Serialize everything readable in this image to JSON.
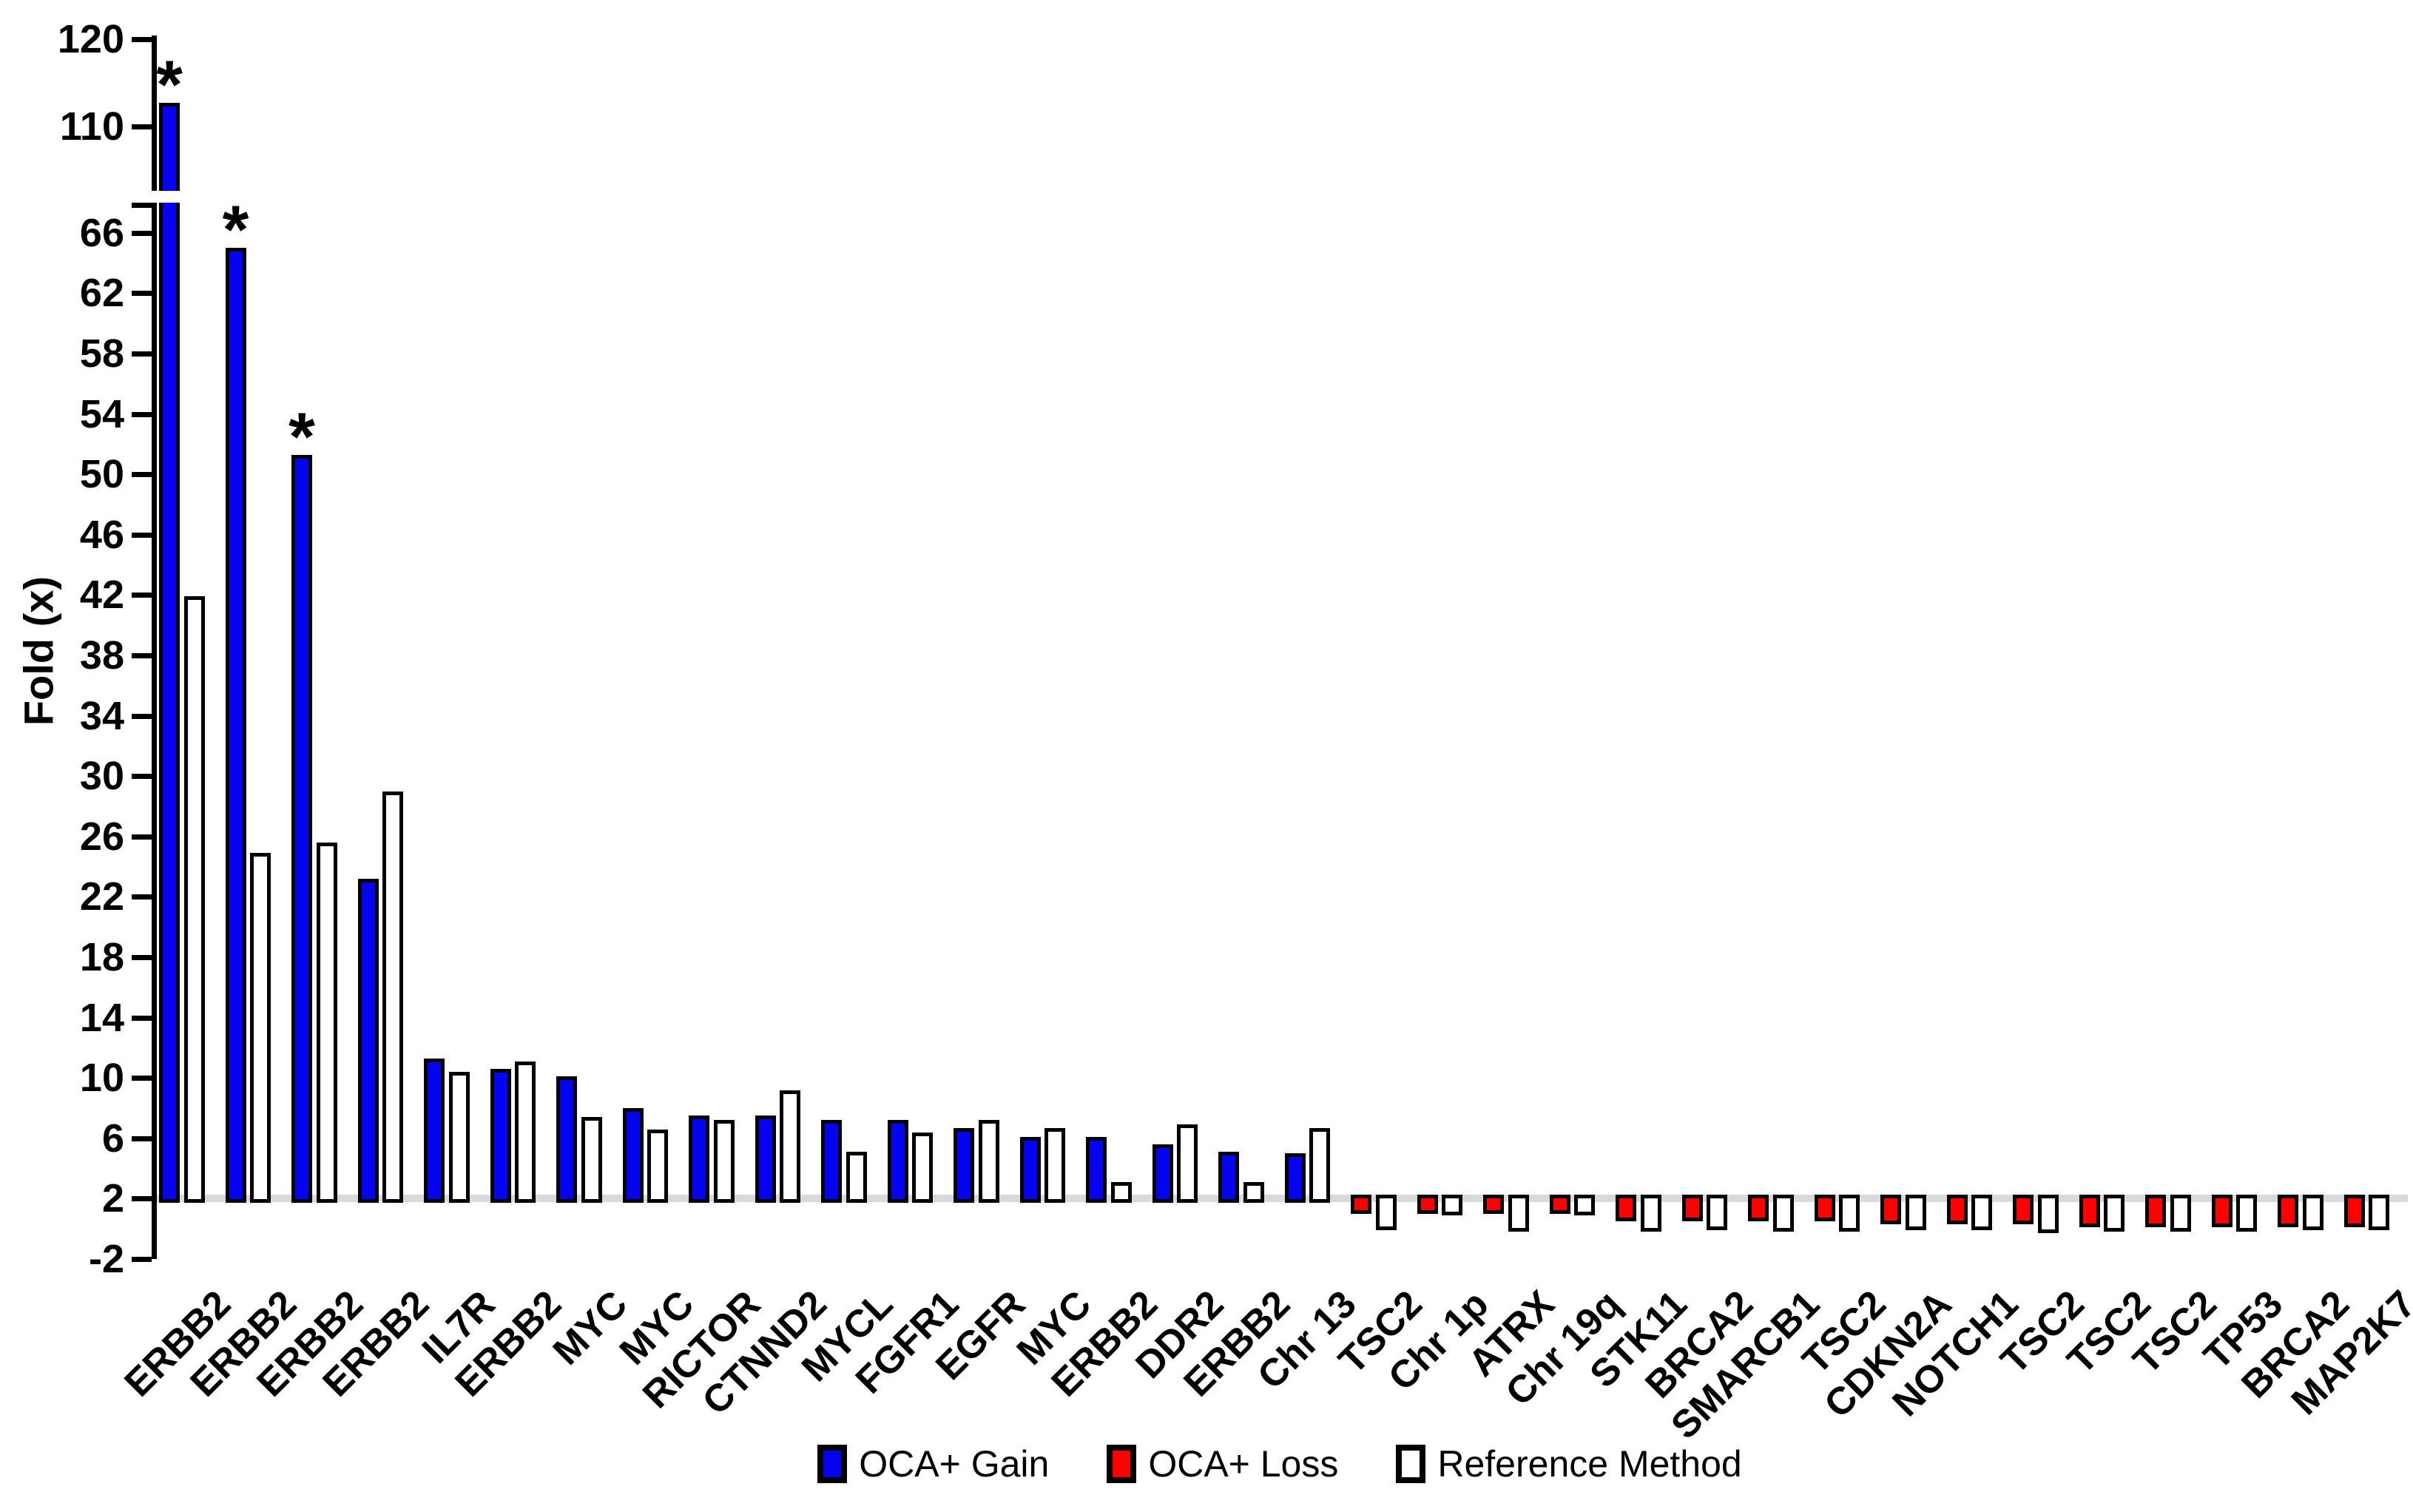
{
  "chart_data": {
    "type": "bar",
    "title": "",
    "ylabel": "Fold (x)",
    "xlabel": "",
    "significance_marker": "*",
    "axis": {
      "baseline_value": 2,
      "lower_ticks": [
        -2,
        2,
        6,
        10,
        14,
        18,
        22,
        26,
        30,
        34,
        38,
        42,
        46,
        50,
        54,
        58,
        62,
        66
      ],
      "upper_ticks": [
        110,
        120
      ],
      "lower_range": [
        -2,
        68
      ],
      "upper_range": [
        102.6,
        120.4
      ],
      "broken_axis": true,
      "grid": false
    },
    "colors": {
      "gain": "#0404f0",
      "loss": "#ff0000",
      "reference": "#ffffff",
      "bar_border": "#000000",
      "baseline_line": "#d9d9d9"
    },
    "legend": [
      {
        "label": "OCA+ Gain",
        "color": "#0404f0"
      },
      {
        "label": "OCA+ Loss",
        "color": "#ff0000"
      },
      {
        "label": "Reference Method",
        "color": "#ffffff"
      }
    ],
    "legend_position": "bottom",
    "rows": [
      {
        "label": "ERBB2",
        "type": "gain",
        "oca": 112.7,
        "reference": 41.9,
        "significant": true
      },
      {
        "label": "ERBB2",
        "type": "gain",
        "oca": 65.0,
        "reference": 24.9,
        "significant": true
      },
      {
        "label": "ERBB2",
        "type": "gain",
        "oca": 51.3,
        "reference": 25.6,
        "significant": true
      },
      {
        "label": "ERBB2",
        "type": "gain",
        "oca": 23.2,
        "reference": 29.0,
        "significant": false
      },
      {
        "label": "IL7R",
        "type": "gain",
        "oca": 11.3,
        "reference": 10.4,
        "significant": false
      },
      {
        "label": "ERBB2",
        "type": "gain",
        "oca": 10.6,
        "reference": 11.1,
        "significant": false
      },
      {
        "label": "MYC",
        "type": "gain",
        "oca": 10.1,
        "reference": 7.4,
        "significant": false
      },
      {
        "label": "MYC",
        "type": "gain",
        "oca": 8.0,
        "reference": 6.6,
        "significant": false
      },
      {
        "label": "RICTOR",
        "type": "gain",
        "oca": 7.5,
        "reference": 7.2,
        "significant": false
      },
      {
        "label": "CTNND2",
        "type": "gain",
        "oca": 7.5,
        "reference": 9.2,
        "significant": false
      },
      {
        "label": "MYCL",
        "type": "gain",
        "oca": 7.2,
        "reference": 5.1,
        "significant": false
      },
      {
        "label": "FGFR1",
        "type": "gain",
        "oca": 7.2,
        "reference": 6.4,
        "significant": false
      },
      {
        "label": "EGFR",
        "type": "gain",
        "oca": 6.7,
        "reference": 7.2,
        "significant": false
      },
      {
        "label": "MYC",
        "type": "gain",
        "oca": 6.1,
        "reference": 6.7,
        "significant": false
      },
      {
        "label": "ERBB2",
        "type": "gain",
        "oca": 6.1,
        "reference": 3.1,
        "significant": false
      },
      {
        "label": "DDR2",
        "type": "gain",
        "oca": 5.6,
        "reference": 6.9,
        "significant": false
      },
      {
        "label": "ERBB2",
        "type": "gain",
        "oca": 5.1,
        "reference": 3.1,
        "significant": false
      },
      {
        "label": "Chr 13",
        "type": "gain",
        "oca": 5.0,
        "reference": 6.7,
        "significant": false
      },
      {
        "label": "TSC2",
        "type": "loss",
        "oca": 1.0,
        "reference": -0.1,
        "significant": false
      },
      {
        "label": "Chr 1p",
        "type": "loss",
        "oca": 1.0,
        "reference": 0.9,
        "significant": false
      },
      {
        "label": "ATRX",
        "type": "loss",
        "oca": 1.0,
        "reference": -0.2,
        "significant": false
      },
      {
        "label": "Chr 19q",
        "type": "loss",
        "oca": 1.0,
        "reference": 0.9,
        "significant": false
      },
      {
        "label": "STK11",
        "type": "loss",
        "oca": 0.5,
        "reference": -0.2,
        "significant": false
      },
      {
        "label": "BRCA2",
        "type": "loss",
        "oca": 0.5,
        "reference": -0.1,
        "significant": false
      },
      {
        "label": "SMARCB1",
        "type": "loss",
        "oca": 0.5,
        "reference": -0.2,
        "significant": false
      },
      {
        "label": "TSC2",
        "type": "loss",
        "oca": 0.5,
        "reference": -0.2,
        "significant": false
      },
      {
        "label": "CDKN2A",
        "type": "loss",
        "oca": 0.3,
        "reference": -0.1,
        "significant": false
      },
      {
        "label": "NOTCH1",
        "type": "loss",
        "oca": 0.3,
        "reference": -0.1,
        "significant": false
      },
      {
        "label": "TSC2",
        "type": "loss",
        "oca": 0.3,
        "reference": -0.3,
        "significant": false
      },
      {
        "label": "TSC2",
        "type": "loss",
        "oca": 0.1,
        "reference": -0.2,
        "significant": false
      },
      {
        "label": "TSC2",
        "type": "loss",
        "oca": 0.1,
        "reference": -0.2,
        "significant": false
      },
      {
        "label": "TP53",
        "type": "loss",
        "oca": 0.1,
        "reference": -0.2,
        "significant": false
      },
      {
        "label": "BRCA2",
        "type": "loss",
        "oca": 0.1,
        "reference": -0.1,
        "significant": false
      },
      {
        "label": "MAP2K7",
        "type": "loss",
        "oca": 0.1,
        "reference": -0.1,
        "significant": false
      }
    ]
  }
}
